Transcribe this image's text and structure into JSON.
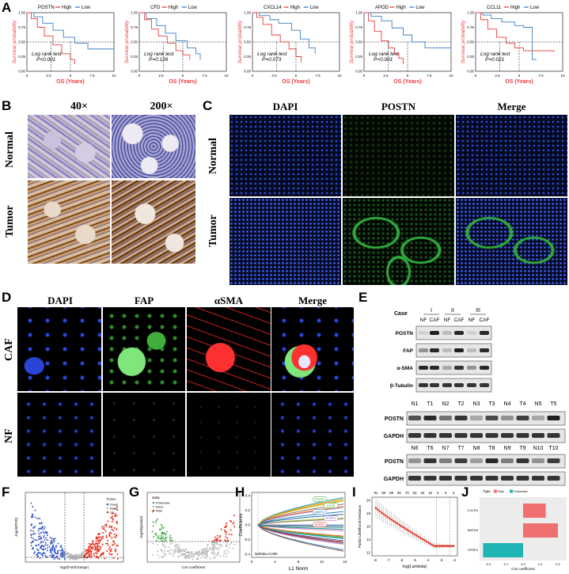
{
  "panel_labels": {
    "A": "A",
    "B": "B",
    "C": "C",
    "D": "D",
    "E": "E",
    "F": "F",
    "G": "G",
    "H": "H",
    "I": "I",
    "J": "J"
  },
  "km": {
    "legend_high": "High",
    "legend_low": "Low",
    "ylabel": "Survival probability",
    "xlabel": "OS (Years)",
    "test_label": "Log rank test",
    "xticks": [
      "0",
      "2.5",
      "5",
      "7.5",
      "10"
    ],
    "yticks": [
      "0.00",
      "0.25",
      "0.50",
      "0.75",
      "1.00"
    ],
    "high_color": "#e8403c",
    "low_color": "#3c7fc4",
    "plots": [
      {
        "gene": "POSTN",
        "p": "P<0.001"
      },
      {
        "gene": "CFD",
        "p": "P=0.126"
      },
      {
        "gene": "CXCL14",
        "p": "P=0.073"
      },
      {
        "gene": "APOD",
        "p": "P<0.001"
      },
      {
        "gene": "CCL11",
        "p": "P=0.021"
      }
    ]
  },
  "b": {
    "col1": "40×",
    "col2": "200×",
    "row1": "Normal",
    "row2": "Tumor"
  },
  "c": {
    "col1": "DAPI",
    "col2": "POSTN",
    "col3": "Merge",
    "row1": "Normal",
    "row2": "Tumor"
  },
  "d": {
    "col1": "DAPI",
    "col2": "FAP",
    "col3": "αSMA",
    "col4": "Merge",
    "row1": "CAF",
    "row2": "NF"
  },
  "e": {
    "case_label": "Case",
    "cases": [
      "I",
      "II",
      "III"
    ],
    "sub": [
      "NF",
      "CAF",
      "NF",
      "CAF",
      "NF",
      "CAF"
    ],
    "blots1": [
      "POSTN",
      "FAP",
      "α-SMA",
      "β-Tubulin"
    ],
    "lanes1": [
      "N1",
      "T1",
      "N2",
      "T2",
      "N3",
      "T3",
      "N4",
      "T4",
      "N5",
      "T5"
    ],
    "blots2": [
      "POSTN",
      "GAPDH"
    ],
    "lanes2": [
      "N6",
      "T6",
      "N7",
      "T7",
      "N8",
      "T8",
      "N9",
      "T9",
      "N10",
      "T10"
    ],
    "blots3": [
      "POSTN",
      "GAPDH"
    ]
  },
  "f": {
    "legend_title": "TCGA",
    "legend": [
      "Down",
      "None",
      "Up"
    ],
    "xlabel": "log2(FoldChange)",
    "ylabel": "-log10(FDR)"
  },
  "g": {
    "legend_title": "state",
    "legend": [
      "Protective",
      "None",
      "Risk"
    ],
    "xlabel": "Cox coefficient",
    "ylabel": "-log10(pvalue)"
  },
  "h": {
    "xlabel": "L1 Norm",
    "ylabel": "Coefficients",
    "lambda": "lambda=0.006",
    "xticks": [
      "0",
      "4",
      "8",
      "12",
      "16"
    ],
    "yticks": [
      "-0.4",
      "-0.2",
      "0.0",
      "0.2",
      "0.4"
    ],
    "genes": [
      "CXCR4",
      "CSTB",
      "MMP11",
      "SFRP4",
      "SFRP2"
    ]
  },
  "i": {
    "xlabel": "log(Lambda)",
    "ylabel": "Partial Likelihood Deviance",
    "top": [
      "91",
      "90",
      "85",
      "80",
      "70",
      "52",
      "33",
      "10",
      "6",
      "6",
      "3"
    ],
    "xticks": [
      "-8",
      "-7",
      "-6",
      "-5",
      "-4",
      "-3",
      "-2"
    ],
    "yticks": [
      "12",
      "14",
      "16",
      "18",
      "20"
    ]
  },
  "j": {
    "legend_title": "Type",
    "legend": [
      "Risk",
      "Protective"
    ],
    "genes": [
      "CXCR4",
      "MATN3",
      "SFRP4"
    ],
    "xlabel": "Cox coefficient",
    "xticks": [
      "-0.2",
      "-0.1",
      "0.0",
      "0.1",
      "0.2"
    ]
  }
}
